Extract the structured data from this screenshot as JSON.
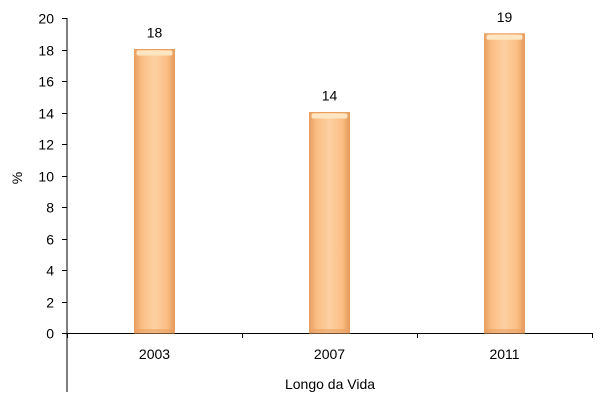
{
  "chart_data": {
    "type": "bar",
    "categories": [
      "2003",
      "2007",
      "2011"
    ],
    "values": [
      18,
      14,
      19
    ],
    "data_labels": [
      "18",
      "14",
      "19"
    ],
    "title": "",
    "xlabel": "Longo da Vida",
    "ylabel": "%",
    "ylim": [
      0,
      20
    ],
    "yticks": [
      0,
      2,
      4,
      6,
      8,
      10,
      12,
      14,
      16,
      18,
      20
    ],
    "grid": false,
    "legend": "none",
    "colors": {
      "bar_fill": "#FCC58C",
      "bar_edge": "#E8A062",
      "bar_highlight": "#FFE6C2",
      "axis": "#000000"
    }
  }
}
